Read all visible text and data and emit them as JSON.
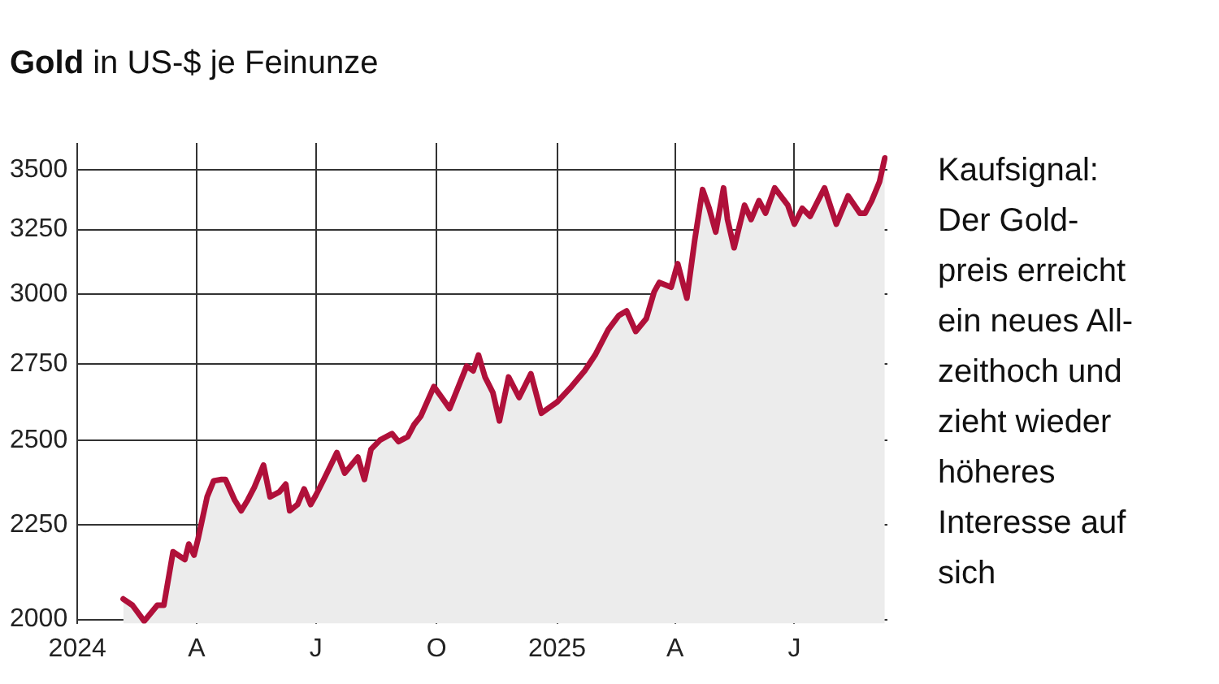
{
  "chart_data": {
    "type": "area",
    "title": "Gold in US-$ je Feinunze",
    "annotations": [
      "Kaufsignal:\nDer Gold-\npreis erreicht\nein neues All-\nzeithoch und\nzieht wieder\nhöheres\nInteresse auf\nsich"
    ],
    "x": [
      "2024-02-05",
      "2024-02-12",
      "2024-02-21",
      "2024-03-02",
      "2024-03-07",
      "2024-03-14",
      "2024-03-23",
      "2024-03-26",
      "2024-03-30",
      "2024-04-02",
      "2024-04-09",
      "2024-04-14",
      "2024-04-20",
      "2024-04-23",
      "2024-04-30",
      "2024-05-05",
      "2024-05-10",
      "2024-05-15",
      "2024-05-22",
      "2024-05-27",
      "2024-06-03",
      "2024-06-08",
      "2024-06-11",
      "2024-06-17",
      "2024-06-22",
      "2024-06-27",
      "2024-07-01",
      "2024-07-07",
      "2024-07-17",
      "2024-07-23",
      "2024-08-02",
      "2024-08-07",
      "2024-08-12",
      "2024-08-19",
      "2024-08-28",
      "2024-09-02",
      "2024-09-09",
      "2024-09-14",
      "2024-09-19",
      "2024-09-29",
      "2024-10-05",
      "2024-10-11",
      "2024-10-24",
      "2024-10-29",
      "2024-11-02",
      "2024-11-07",
      "2024-11-13",
      "2024-11-18",
      "2024-11-25",
      "2024-12-03",
      "2024-12-12",
      "2024-12-20",
      "2025-01-01",
      "2025-01-12",
      "2025-01-22",
      "2025-01-30",
      "2025-02-09",
      "2025-02-17",
      "2025-02-23",
      "2025-03-02",
      "2025-03-10",
      "2025-03-16",
      "2025-03-20",
      "2025-03-29",
      "2025-04-03",
      "2025-04-10",
      "2025-04-16",
      "2025-04-22",
      "2025-04-27",
      "2025-05-02",
      "2025-05-08",
      "2025-05-11",
      "2025-05-16",
      "2025-05-24",
      "2025-05-29",
      "2025-06-04",
      "2025-06-09",
      "2025-06-16",
      "2025-06-26",
      "2025-07-01",
      "2025-07-07",
      "2025-07-13",
      "2025-07-24",
      "2025-08-02",
      "2025-08-11",
      "2025-08-20",
      "2025-08-24",
      "2025-08-29",
      "2025-09-04",
      "2025-09-08"
    ],
    "series": [
      {
        "color": "#b0103a",
        "values": [
          2052,
          2036,
          1996,
          2036,
          2036,
          2176,
          2155,
          2197,
          2167,
          2210,
          2330,
          2377,
          2381,
          2381,
          2321,
          2290,
          2321,
          2358,
          2424,
          2330,
          2344,
          2367,
          2290,
          2308,
          2353,
          2308,
          2335,
          2381,
          2462,
          2400,
          2448,
          2381,
          2472,
          2501,
          2521,
          2496,
          2511,
          2550,
          2576,
          2673,
          2637,
          2601,
          2742,
          2726,
          2780,
          2705,
          2653,
          2561,
          2705,
          2637,
          2716,
          2586,
          2622,
          2673,
          2726,
          2780,
          2869,
          2920,
          2937,
          2863,
          2909,
          3007,
          3043,
          3025,
          3115,
          2984,
          3208,
          3416,
          3337,
          3240,
          3423,
          3291,
          3177,
          3350,
          3291,
          3369,
          3317,
          3423,
          3350,
          3272,
          3337,
          3304,
          3423,
          3272,
          3389,
          3317,
          3317,
          3369,
          3450,
          3553
        ]
      }
    ],
    "xlim": [
      "2024-01-01",
      "2025-09-10"
    ],
    "xticks": [
      {
        "value": "2024-01-01",
        "label": "2024"
      },
      {
        "value": "2024-04-01",
        "label": "A"
      },
      {
        "value": "2024-07-01",
        "label": "J"
      },
      {
        "value": "2024-10-01",
        "label": "O"
      },
      {
        "value": "2025-01-01",
        "label": "2025"
      },
      {
        "value": "2025-04-01",
        "label": "A"
      },
      {
        "value": "2025-07-01",
        "label": "J"
      }
    ],
    "log": true,
    "ylim": [
      1990,
      3620
    ],
    "yticks": [
      2000,
      2250,
      2500,
      2750,
      3000,
      3250,
      3500
    ],
    "grid": true
  }
}
